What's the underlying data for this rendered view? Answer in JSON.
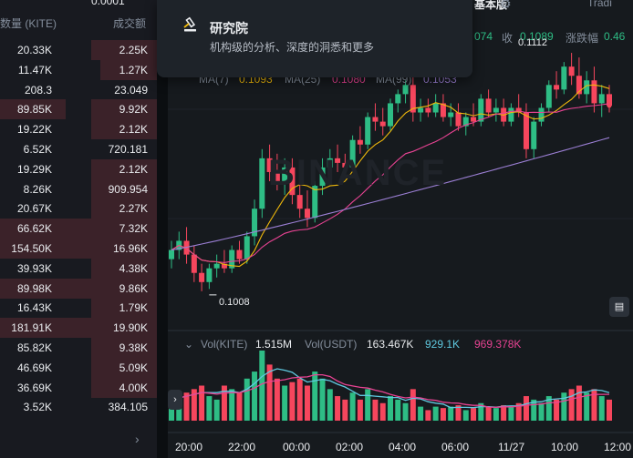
{
  "trades": {
    "top_value": "0.0001",
    "header_amount": "数量 (KITE)",
    "header_total": "成交额",
    "rows": [
      {
        "amount": "20.33K",
        "total": "2.25K"
      },
      {
        "amount": "11.47K",
        "total": "1.27K"
      },
      {
        "amount": "208.3",
        "total": "23.049"
      },
      {
        "amount": "89.85K",
        "total": "9.92K"
      },
      {
        "amount": "19.22K",
        "total": "2.12K"
      },
      {
        "amount": "6.52K",
        "total": "720.181"
      },
      {
        "amount": "19.29K",
        "total": "2.12K"
      },
      {
        "amount": "8.26K",
        "total": "909.954"
      },
      {
        "amount": "20.67K",
        "total": "2.27K"
      },
      {
        "amount": "66.62K",
        "total": "7.32K"
      },
      {
        "amount": "154.50K",
        "total": "16.96K"
      },
      {
        "amount": "39.93K",
        "total": "4.38K"
      },
      {
        "amount": "89.98K",
        "total": "9.86K"
      },
      {
        "amount": "16.43K",
        "total": "1.79K"
      },
      {
        "amount": "181.91K",
        "total": "19.90K"
      },
      {
        "amount": "85.82K",
        "total": "9.38K"
      },
      {
        "amount": "46.69K",
        "total": "5.09K"
      },
      {
        "amount": "36.69K",
        "total": "4.00K"
      },
      {
        "amount": "3.52K",
        "total": "384.105"
      }
    ],
    "more_icon": "chevron-right-icon"
  },
  "popup": {
    "icon": "gavel-icon",
    "title": "研究院",
    "description": "机构级的分析、深度的洞悉和更多"
  },
  "top_bar": {
    "view_label": "基本版",
    "tab_label": "Tradi",
    "stat_open_value": "074",
    "stat_close_label": "收",
    "stat_close_value": "0.1089",
    "stat_change_label": "涨跌幅",
    "stat_change_value": "0.46"
  },
  "ma_legend": {
    "ma7_label": "MA(7)",
    "ma7_value": "0.1093",
    "ma25_label": "MA(25)",
    "ma25_value": "0.1080",
    "ma99_label": "MA(99)",
    "ma99_value": "0.1053"
  },
  "volume_legend": {
    "vol_kite_label": "Vol(KITE)",
    "vol_kite_value": "1.515M",
    "vol_usdt_label": "Vol(USDT)",
    "vol_usdt_value": "163.467K",
    "vol_ma1_value": "929.1K",
    "vol_ma2_value": "969.378K"
  },
  "price_marks": {
    "high_label": "0.1112",
    "low_label": "0.1008"
  },
  "watermark": "BINANCE",
  "x_axis": [
    "20:00",
    "22:00",
    "00:00",
    "02:00",
    "04:00",
    "06:00",
    "11/27",
    "10:00",
    "12:00"
  ],
  "colors": {
    "up": "#2ebd85",
    "down": "#f6465d",
    "ma7": "#f0b90b",
    "ma25": "#e84393",
    "ma99": "#9b7fd4",
    "vol_ma1": "#5fc9e0",
    "vol_ma2": "#e84393"
  },
  "chart_data": {
    "type": "candlestick",
    "ohlc": [
      [
        0.1022,
        0.103,
        0.1018,
        0.1026
      ],
      [
        0.1026,
        0.1034,
        0.1022,
        0.103
      ],
      [
        0.103,
        0.1036,
        0.102,
        0.1024
      ],
      [
        0.1024,
        0.1028,
        0.1012,
        0.1016
      ],
      [
        0.1016,
        0.102,
        0.1008,
        0.1012
      ],
      [
        0.1012,
        0.102,
        0.1009,
        0.1018
      ],
      [
        0.1018,
        0.1024,
        0.1014,
        0.102
      ],
      [
        0.102,
        0.1026,
        0.1016,
        0.1018
      ],
      [
        0.1018,
        0.1028,
        0.1016,
        0.1026
      ],
      [
        0.1026,
        0.103,
        0.102,
        0.1022
      ],
      [
        0.1022,
        0.1034,
        0.102,
        0.1032
      ],
      [
        0.1032,
        0.1048,
        0.1028,
        0.1044
      ],
      [
        0.1044,
        0.107,
        0.104,
        0.1066
      ],
      [
        0.1066,
        0.1072,
        0.1056,
        0.106
      ],
      [
        0.106,
        0.1068,
        0.1052,
        0.1056
      ],
      [
        0.1056,
        0.1066,
        0.105,
        0.1062
      ],
      [
        0.1062,
        0.1066,
        0.1046,
        0.105
      ],
      [
        0.105,
        0.1058,
        0.104,
        0.1044
      ],
      [
        0.1044,
        0.1052,
        0.1036,
        0.104
      ],
      [
        0.104,
        0.1056,
        0.1038,
        0.1054
      ],
      [
        0.1054,
        0.1066,
        0.105,
        0.1062
      ],
      [
        0.1062,
        0.107,
        0.1058,
        0.1066
      ],
      [
        0.1066,
        0.1072,
        0.106,
        0.1064
      ],
      [
        0.1064,
        0.1068,
        0.1058,
        0.1062
      ],
      [
        0.1062,
        0.1076,
        0.106,
        0.1074
      ],
      [
        0.1074,
        0.108,
        0.1068,
        0.1072
      ],
      [
        0.1072,
        0.1086,
        0.107,
        0.1084
      ],
      [
        0.1084,
        0.109,
        0.1078,
        0.1082
      ],
      [
        0.1082,
        0.1088,
        0.1076,
        0.108
      ],
      [
        0.108,
        0.1092,
        0.1078,
        0.109
      ],
      [
        0.109,
        0.1096,
        0.1086,
        0.1094
      ],
      [
        0.1094,
        0.11,
        0.109,
        0.1098
      ],
      [
        0.1098,
        0.1102,
        0.1082,
        0.1086
      ],
      [
        0.1086,
        0.1092,
        0.1082,
        0.1088
      ],
      [
        0.1088,
        0.1092,
        0.1084,
        0.1086
      ],
      [
        0.1086,
        0.1094,
        0.1084,
        0.109
      ],
      [
        0.109,
        0.1094,
        0.1082,
        0.1084
      ],
      [
        0.1084,
        0.109,
        0.108,
        0.1086
      ],
      [
        0.1086,
        0.109,
        0.1078,
        0.108
      ],
      [
        0.108,
        0.1086,
        0.1076,
        0.1084
      ],
      [
        0.1084,
        0.109,
        0.108,
        0.1082
      ],
      [
        0.1082,
        0.1094,
        0.108,
        0.1092
      ],
      [
        0.1092,
        0.1096,
        0.1084,
        0.1086
      ],
      [
        0.1086,
        0.1092,
        0.1082,
        0.1088
      ],
      [
        0.1088,
        0.1092,
        0.108,
        0.1082
      ],
      [
        0.1082,
        0.109,
        0.108,
        0.1088
      ],
      [
        0.1088,
        0.1094,
        0.1084,
        0.1086
      ],
      [
        0.1086,
        0.109,
        0.1066,
        0.107
      ],
      [
        0.107,
        0.1084,
        0.1066,
        0.1082
      ],
      [
        0.1082,
        0.109,
        0.108,
        0.1088
      ],
      [
        0.1088,
        0.11,
        0.1086,
        0.1098
      ],
      [
        0.1098,
        0.1104,
        0.1092,
        0.1096
      ],
      [
        0.1096,
        0.1108,
        0.1094,
        0.1106
      ],
      [
        0.1106,
        0.1112,
        0.1098,
        0.1102
      ],
      [
        0.1102,
        0.111,
        0.1092,
        0.1094
      ],
      [
        0.1094,
        0.1104,
        0.109,
        0.11
      ],
      [
        0.11,
        0.1106,
        0.1086,
        0.109
      ],
      [
        0.109,
        0.1098,
        0.1084,
        0.1094
      ],
      [
        0.1094,
        0.1098,
        0.1086,
        0.1089
      ]
    ],
    "volume_up_down": [
      1,
      1,
      0,
      0,
      0,
      1,
      1,
      0,
      1,
      0,
      1,
      1,
      1,
      0,
      0,
      1,
      0,
      0,
      0,
      1,
      1,
      1,
      0,
      0,
      1,
      0,
      1,
      0,
      0,
      1,
      1,
      1,
      0,
      1,
      0,
      1,
      0,
      1,
      0,
      1,
      0,
      1,
      0,
      1,
      0,
      1,
      0,
      0,
      1,
      1,
      1,
      0,
      1,
      0,
      0,
      1,
      0,
      1,
      0
    ],
    "volume": [
      0.35,
      0.3,
      0.4,
      0.45,
      0.5,
      0.35,
      0.3,
      0.5,
      0.45,
      0.4,
      0.6,
      0.7,
      1.0,
      0.8,
      0.6,
      0.5,
      0.55,
      0.6,
      0.5,
      0.7,
      0.6,
      0.45,
      0.35,
      0.3,
      0.4,
      0.3,
      0.45,
      0.3,
      0.25,
      0.35,
      0.3,
      0.25,
      0.45,
      0.2,
      0.15,
      0.2,
      0.18,
      0.2,
      0.22,
      0.15,
      0.18,
      0.25,
      0.2,
      0.18,
      0.22,
      0.2,
      0.25,
      0.35,
      0.3,
      0.25,
      0.35,
      0.3,
      0.4,
      0.45,
      0.5,
      0.4,
      0.45,
      0.35,
      0.3
    ]
  }
}
